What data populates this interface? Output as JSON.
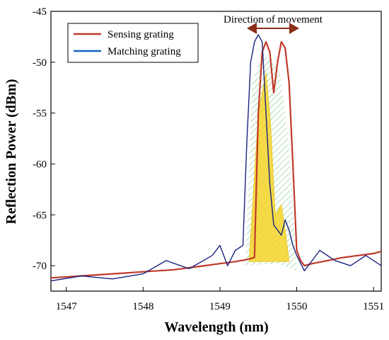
{
  "chart_data": {
    "type": "line",
    "xlabel": "Wavelength (nm)",
    "ylabel": "Reflection Power (dBm)",
    "xlim": [
      1546.8,
      1551.1
    ],
    "ylim": [
      -72.5,
      -45
    ],
    "x_ticks": [
      1547,
      1548,
      1549,
      1550,
      1551
    ],
    "x_tick_labels": [
      "1547",
      "1548",
      "1549",
      "1550",
      "1551"
    ],
    "y_ticks": [
      -45,
      -50,
      -55,
      -60,
      -65,
      -70
    ],
    "y_tick_labels": [
      "-45",
      "-50",
      "-55",
      "-60",
      "-65",
      "-70"
    ],
    "grid": false,
    "legend_position": "top-left",
    "annotation": "Direction of movement",
    "colors": {
      "sensing": "#c0392b",
      "matching": "#1a237e",
      "legend_matching": "#1565c0",
      "overlap_fill": "#f5d328",
      "hatch": "#5dbb63",
      "arrow": "#8b2e1a"
    },
    "series": [
      {
        "name": "Sensing grating",
        "x": [
          1546.8,
          1547.2,
          1547.6,
          1548.0,
          1548.4,
          1548.8,
          1549.0,
          1549.2,
          1549.35,
          1549.45,
          1549.5,
          1549.55,
          1549.6,
          1549.65,
          1549.7,
          1549.75,
          1549.8,
          1549.85,
          1549.9,
          1549.95,
          1550.0,
          1550.05,
          1550.1,
          1550.2,
          1550.4,
          1550.6,
          1550.8,
          1551.0,
          1551.1
        ],
        "y": [
          -71.2,
          -71.0,
          -70.8,
          -70.6,
          -70.4,
          -70.0,
          -69.8,
          -69.6,
          -69.4,
          -69.2,
          -55.0,
          -49.0,
          -48.0,
          -49.0,
          -53.0,
          -50.0,
          -48.0,
          -48.6,
          -52.0,
          -60.0,
          -68.5,
          -69.5,
          -70.0,
          -69.8,
          -69.5,
          -69.2,
          -69.0,
          -68.8,
          -68.6
        ]
      },
      {
        "name": "Matching grating",
        "x": [
          1546.8,
          1547.2,
          1547.6,
          1548.0,
          1548.3,
          1548.6,
          1548.9,
          1549.0,
          1549.1,
          1549.2,
          1549.3,
          1549.35,
          1549.4,
          1549.45,
          1549.5,
          1549.55,
          1549.6,
          1549.65,
          1549.7,
          1549.8,
          1549.85,
          1549.9,
          1549.95,
          1550.0,
          1550.1,
          1550.3,
          1550.5,
          1550.7,
          1550.9,
          1551.1
        ],
        "y": [
          -71.5,
          -71.0,
          -71.3,
          -70.8,
          -69.5,
          -70.3,
          -69.0,
          -68.0,
          -70.0,
          -68.5,
          -68.0,
          -58.0,
          -50.0,
          -48.0,
          -47.3,
          -48.0,
          -55.0,
          -62.0,
          -66.0,
          -67.0,
          -65.5,
          -66.5,
          -68.0,
          -69.0,
          -70.5,
          -68.5,
          -69.5,
          -70.0,
          -69.0,
          -70.0
        ]
      }
    ]
  }
}
